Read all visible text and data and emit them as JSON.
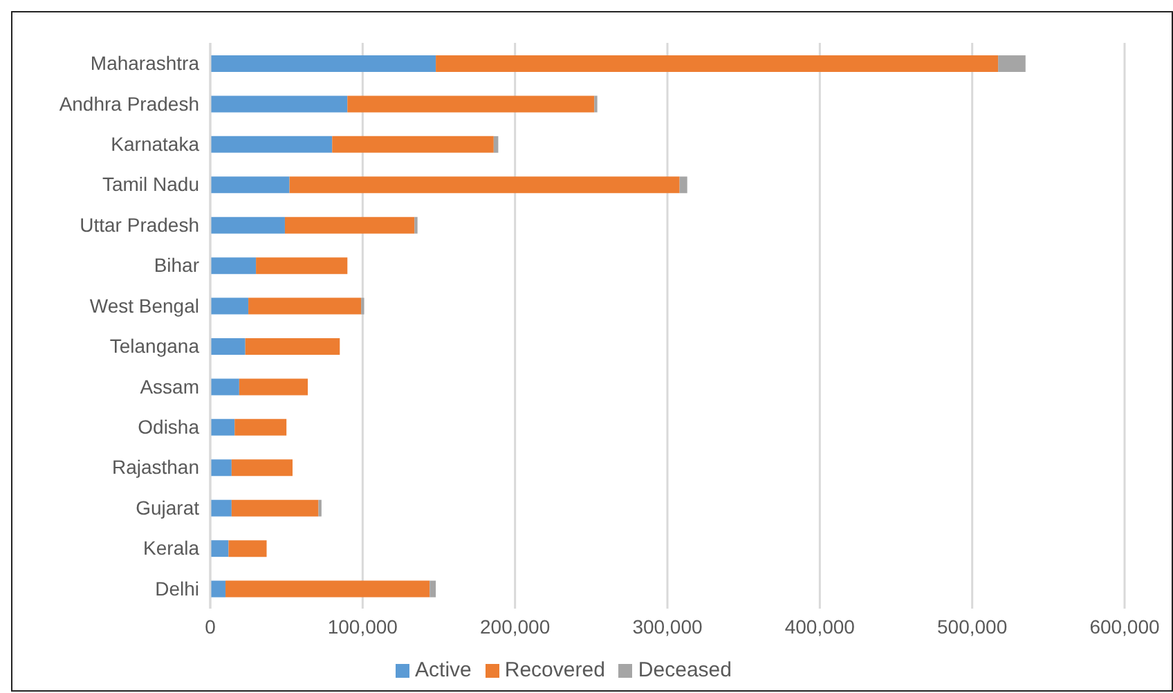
{
  "chart_data": {
    "type": "bar",
    "orientation": "horizontal",
    "stacked": true,
    "categories": [
      "Maharashtra",
      "Andhra Pradesh",
      "Karnataka",
      "Tamil Nadu",
      "Uttar Pradesh",
      "Bihar",
      "West Bengal",
      "Telangana",
      "Assam",
      "Odisha",
      "Rajasthan",
      "Gujarat",
      "Kerala",
      "Delhi"
    ],
    "series": [
      {
        "name": "Active",
        "color": "#5b9bd5",
        "values": [
          148000,
          90000,
          80000,
          52000,
          49000,
          30000,
          25000,
          23000,
          19000,
          16000,
          14000,
          14000,
          12000,
          10000
        ]
      },
      {
        "name": "Recovered",
        "color": "#ed7d31",
        "values": [
          369000,
          162000,
          106000,
          256000,
          85000,
          60000,
          74000,
          62000,
          45000,
          34000,
          40000,
          57000,
          25000,
          134000
        ]
      },
      {
        "name": "Deceased",
        "color": "#a5a5a5",
        "values": [
          18000,
          2000,
          3000,
          5000,
          2000,
          null,
          2000,
          null,
          null,
          null,
          null,
          2000,
          null,
          4000
        ]
      }
    ],
    "xlim": [
      0,
      600000
    ],
    "xticks": [
      0,
      {
        "value": 100000,
        "label": "100,000"
      },
      {
        "value": 200000,
        "label": "200,000"
      },
      {
        "value": 300000,
        "label": "300,000"
      },
      {
        "value": 400000,
        "label": "400,000"
      },
      {
        "value": 500000,
        "label": "500,000"
      },
      {
        "value": 600000,
        "label": "600,000"
      }
    ],
    "grid": "x",
    "legend": "bottom"
  }
}
